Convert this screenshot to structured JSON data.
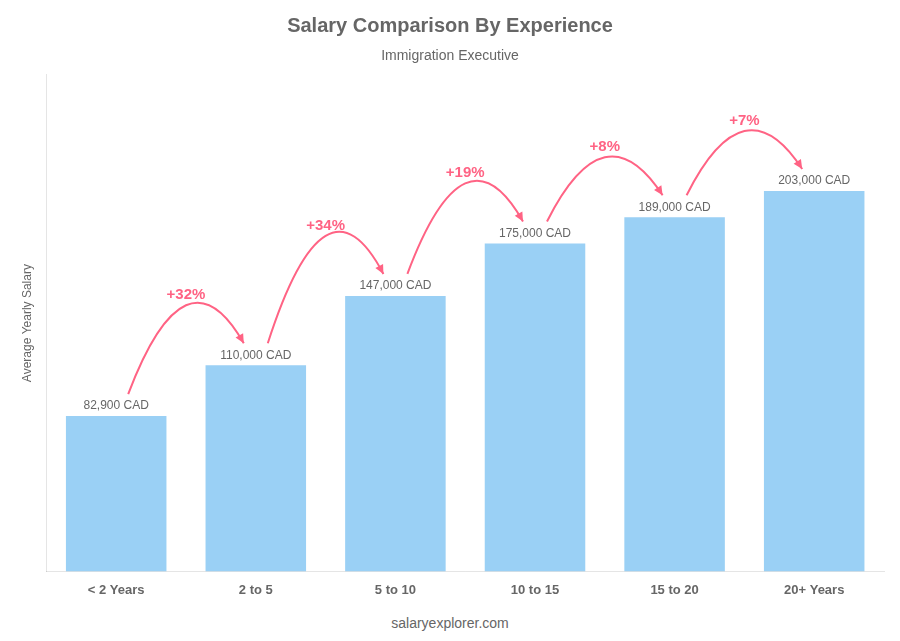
{
  "chart_data": {
    "type": "bar",
    "title": "Salary Comparison By Experience",
    "subtitle": "Immigration Executive",
    "categories": [
      "< 2 Years",
      "2 to 5",
      "5 to 10",
      "10 to 15",
      "15 to 20",
      "20+ Years"
    ],
    "values": [
      82900,
      110000,
      147000,
      175000,
      189000,
      203000
    ],
    "value_labels": [
      "82,900 CAD",
      "110,000 CAD",
      "147,000 CAD",
      "175,000 CAD",
      "189,000 CAD",
      "203,000 CAD"
    ],
    "data_labels": true,
    "ylabel": "Average Yearly Salary",
    "ylim": [
      0,
      265000
    ],
    "tick_labels": "x",
    "grid": false,
    "annotations": [
      {
        "text": "+32%",
        "from": "< 2 Years",
        "to": "2 to 5"
      },
      {
        "text": "+34%",
        "from": "2 to 5",
        "to": "5 to 10"
      },
      {
        "text": "+19%",
        "from": "5 to 10",
        "to": "10 to 15"
      },
      {
        "text": "+8%",
        "from": "10 to 15",
        "to": "15 to 20"
      },
      {
        "text": "+7%",
        "from": "15 to 20",
        "to": "20+ Years"
      }
    ],
    "footer": "salaryexplorer.com"
  }
}
